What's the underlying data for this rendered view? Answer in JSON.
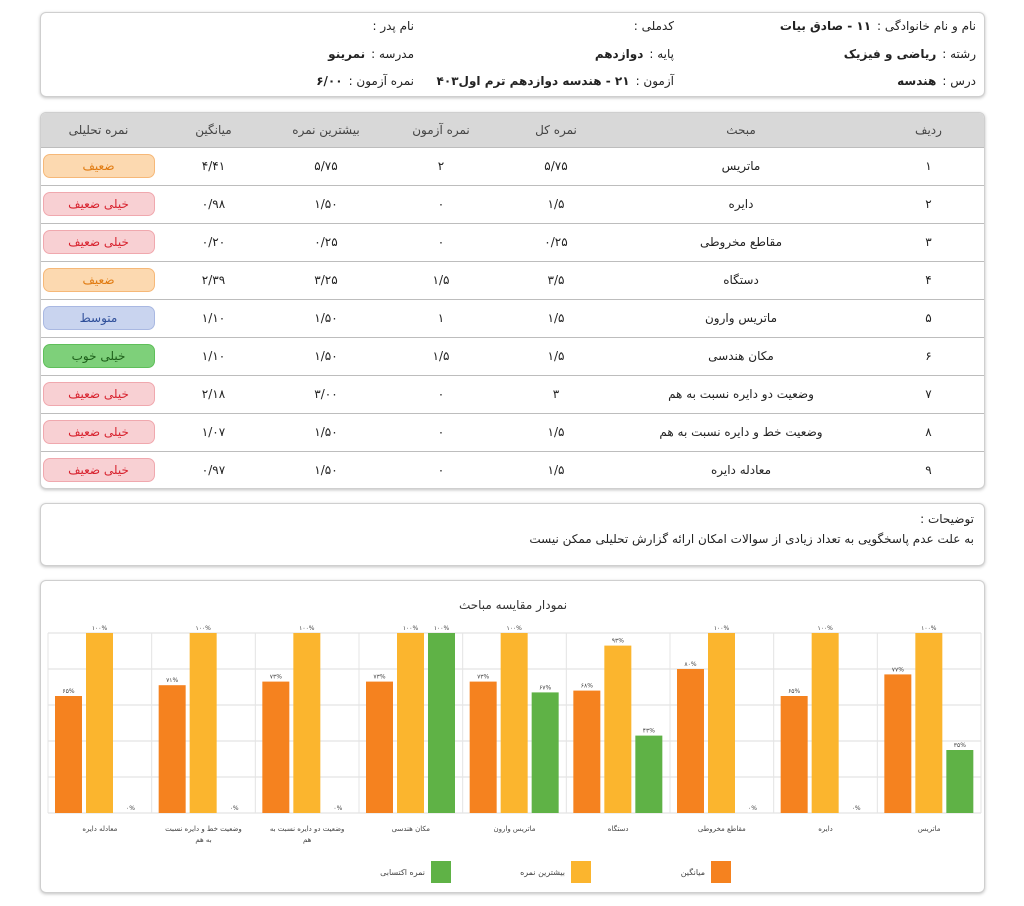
{
  "info": {
    "name_label": "نام و نام خانوادگی :",
    "name_value": "۱۱ - صادق بیات",
    "national_label": "کدملی :",
    "national_value": "",
    "father_label": "نام پدر :",
    "father_value": "",
    "field_label": "رشته :",
    "field_value": "ریاضی و فیزیک",
    "grade_label": "پایه :",
    "grade_value": "دوازدهم",
    "school_label": "مدرسه :",
    "school_value": "نمرینو",
    "course_label": "درس :",
    "course_value": "هندسه",
    "exam_label": "آزمون :",
    "exam_value": "۲۱ - هندسه دوازدهم ترم اول۴۰۳",
    "score_label": "نمره آزمون :",
    "score_value": "۶/۰۰"
  },
  "table": {
    "headers": [
      "ردیف",
      "مبحث",
      "نمره کل",
      "نمره آزمون",
      "بیشترین نمره",
      "میانگین",
      "نمره تحلیلی"
    ],
    "rows": [
      [
        "۱",
        "ماتریس",
        "۵/۷۵",
        "۲",
        "۵/۷۵",
        "۴/۴۱",
        "ضعیف"
      ],
      [
        "۲",
        "دایره",
        "۱/۵",
        "۰",
        "۱/۵۰",
        "۰/۹۸",
        "خیلی ضعیف"
      ],
      [
        "۳",
        "مقاطع مخروطی",
        "۰/۲۵",
        "۰",
        "۰/۲۵",
        "۰/۲۰",
        "خیلی ضعیف"
      ],
      [
        "۴",
        "دستگاه",
        "۳/۵",
        "۱/۵",
        "۳/۲۵",
        "۲/۳۹",
        "ضعیف"
      ],
      [
        "۵",
        "ماتریس وارون",
        "۱/۵",
        "۱",
        "۱/۵۰",
        "۱/۱۰",
        "متوسط"
      ],
      [
        "۶",
        "مکان هندسی",
        "۱/۵",
        "۱/۵",
        "۱/۵۰",
        "۱/۱۰",
        "خیلی خوب"
      ],
      [
        "۷",
        "وضعیت دو دایره نسبت به هم",
        "۳",
        "۰",
        "۳/۰۰",
        "۲/۱۸",
        "خیلی ضعیف"
      ],
      [
        "۸",
        "وضعیت خط و دایره نسبت به هم",
        "۱/۵",
        "۰",
        "۱/۵۰",
        "۱/۰۷",
        "خیلی ضعیف"
      ],
      [
        "۹",
        "معادله دایره",
        "۱/۵",
        "۰",
        "۱/۵۰",
        "۰/۹۷",
        "خیلی ضعیف"
      ]
    ],
    "badge_colors": {
      "ضعیف": {
        "bg": "#fcd9b0",
        "border": "#f6b878",
        "fg": "#e07a10"
      },
      "خیلی ضعیف": {
        "bg": "#f8d0d3",
        "border": "#f0a8ae",
        "fg": "#d8232f"
      },
      "متوسط": {
        "bg": "#c9d4ef",
        "border": "#a9b8e2",
        "fg": "#2f4f9a"
      },
      "خیلی خوب": {
        "bg": "#7ed07a",
        "border": "#5fbf5a",
        "fg": "#1d5e1a"
      }
    }
  },
  "notes": {
    "title": "توضیحات :",
    "text": "به علت عدم پاسخگویی به تعداد زیادی از سوالات امکان ارائه گزارش تحلیلی ممکن نیست"
  },
  "chart_data": {
    "type": "bar",
    "title": "نمودار مقایسه مباحث",
    "categories": [
      "ماتریس",
      "دایره",
      "مقاطع مخروطی",
      "دستگاه",
      "ماتریس وارون",
      "مکان هندسی",
      "وضعیت دو دایره نسبت به هم",
      "وضعیت خط و دایره نسبت به هم",
      "معادله دایره"
    ],
    "ylim": [
      0,
      100
    ],
    "grid": true,
    "legend_position": "bottom",
    "series": [
      {
        "name": "میانگین",
        "color": "#f5821f",
        "values": [
          77,
          65,
          80,
          68,
          73,
          73,
          73,
          71,
          65
        ]
      },
      {
        "name": "بیشترین نمره",
        "color": "#fbb52e",
        "values": [
          100,
          100,
          100,
          93,
          100,
          100,
          100,
          100,
          100
        ]
      },
      {
        "name": "نمره اکتسابی",
        "color": "#5fb246",
        "values": [
          35,
          0,
          0,
          43,
          67,
          100,
          0,
          0,
          0
        ]
      }
    ]
  }
}
